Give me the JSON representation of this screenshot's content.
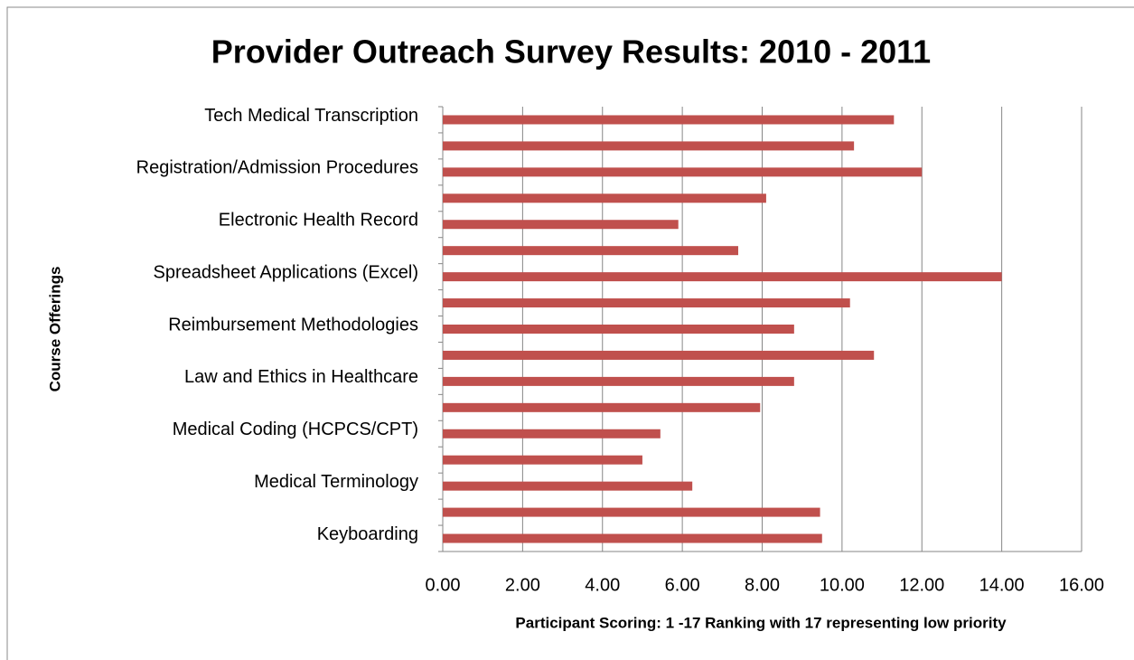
{
  "chart_data": {
    "type": "barh",
    "title": "Provider Outreach Survey Results:  2010 - 2011",
    "x_label": "Participant Scoring:  1 -17 Ranking with 17 representing low priority",
    "y_label": "Course Offerings",
    "categories": [
      "Tech Medical Transcription",
      null,
      "Registration/Admission Procedures",
      null,
      "Electronic Health Record",
      null,
      "Spreadsheet Applications (Excel)",
      null,
      "Reimbursement Methodologies",
      null,
      "Law and Ethics in Healthcare",
      null,
      "Medical Coding (HCPCS/CPT)",
      null,
      "Medical Terminology",
      null,
      "Keyboarding"
    ],
    "values": [
      11.3,
      10.3,
      12.0,
      8.1,
      5.9,
      7.4,
      14.0,
      10.2,
      8.8,
      10.8,
      8.8,
      7.95,
      5.45,
      5.0,
      6.25,
      9.45,
      9.5
    ],
    "color": "#c0504d",
    "xlim": [
      0,
      16
    ],
    "xticks": [
      {
        "value": 0,
        "label": "0.00"
      },
      {
        "value": 2,
        "label": "2.00"
      },
      {
        "value": 4,
        "label": "4.00"
      },
      {
        "value": 6,
        "label": "6.00"
      },
      {
        "value": 8,
        "label": "8.00"
      },
      {
        "value": 10,
        "label": "10.00"
      },
      {
        "value": 12,
        "label": "12.00"
      },
      {
        "value": 14,
        "label": "14.00"
      },
      {
        "value": 16,
        "label": "16.00"
      }
    ],
    "grid": true
  }
}
